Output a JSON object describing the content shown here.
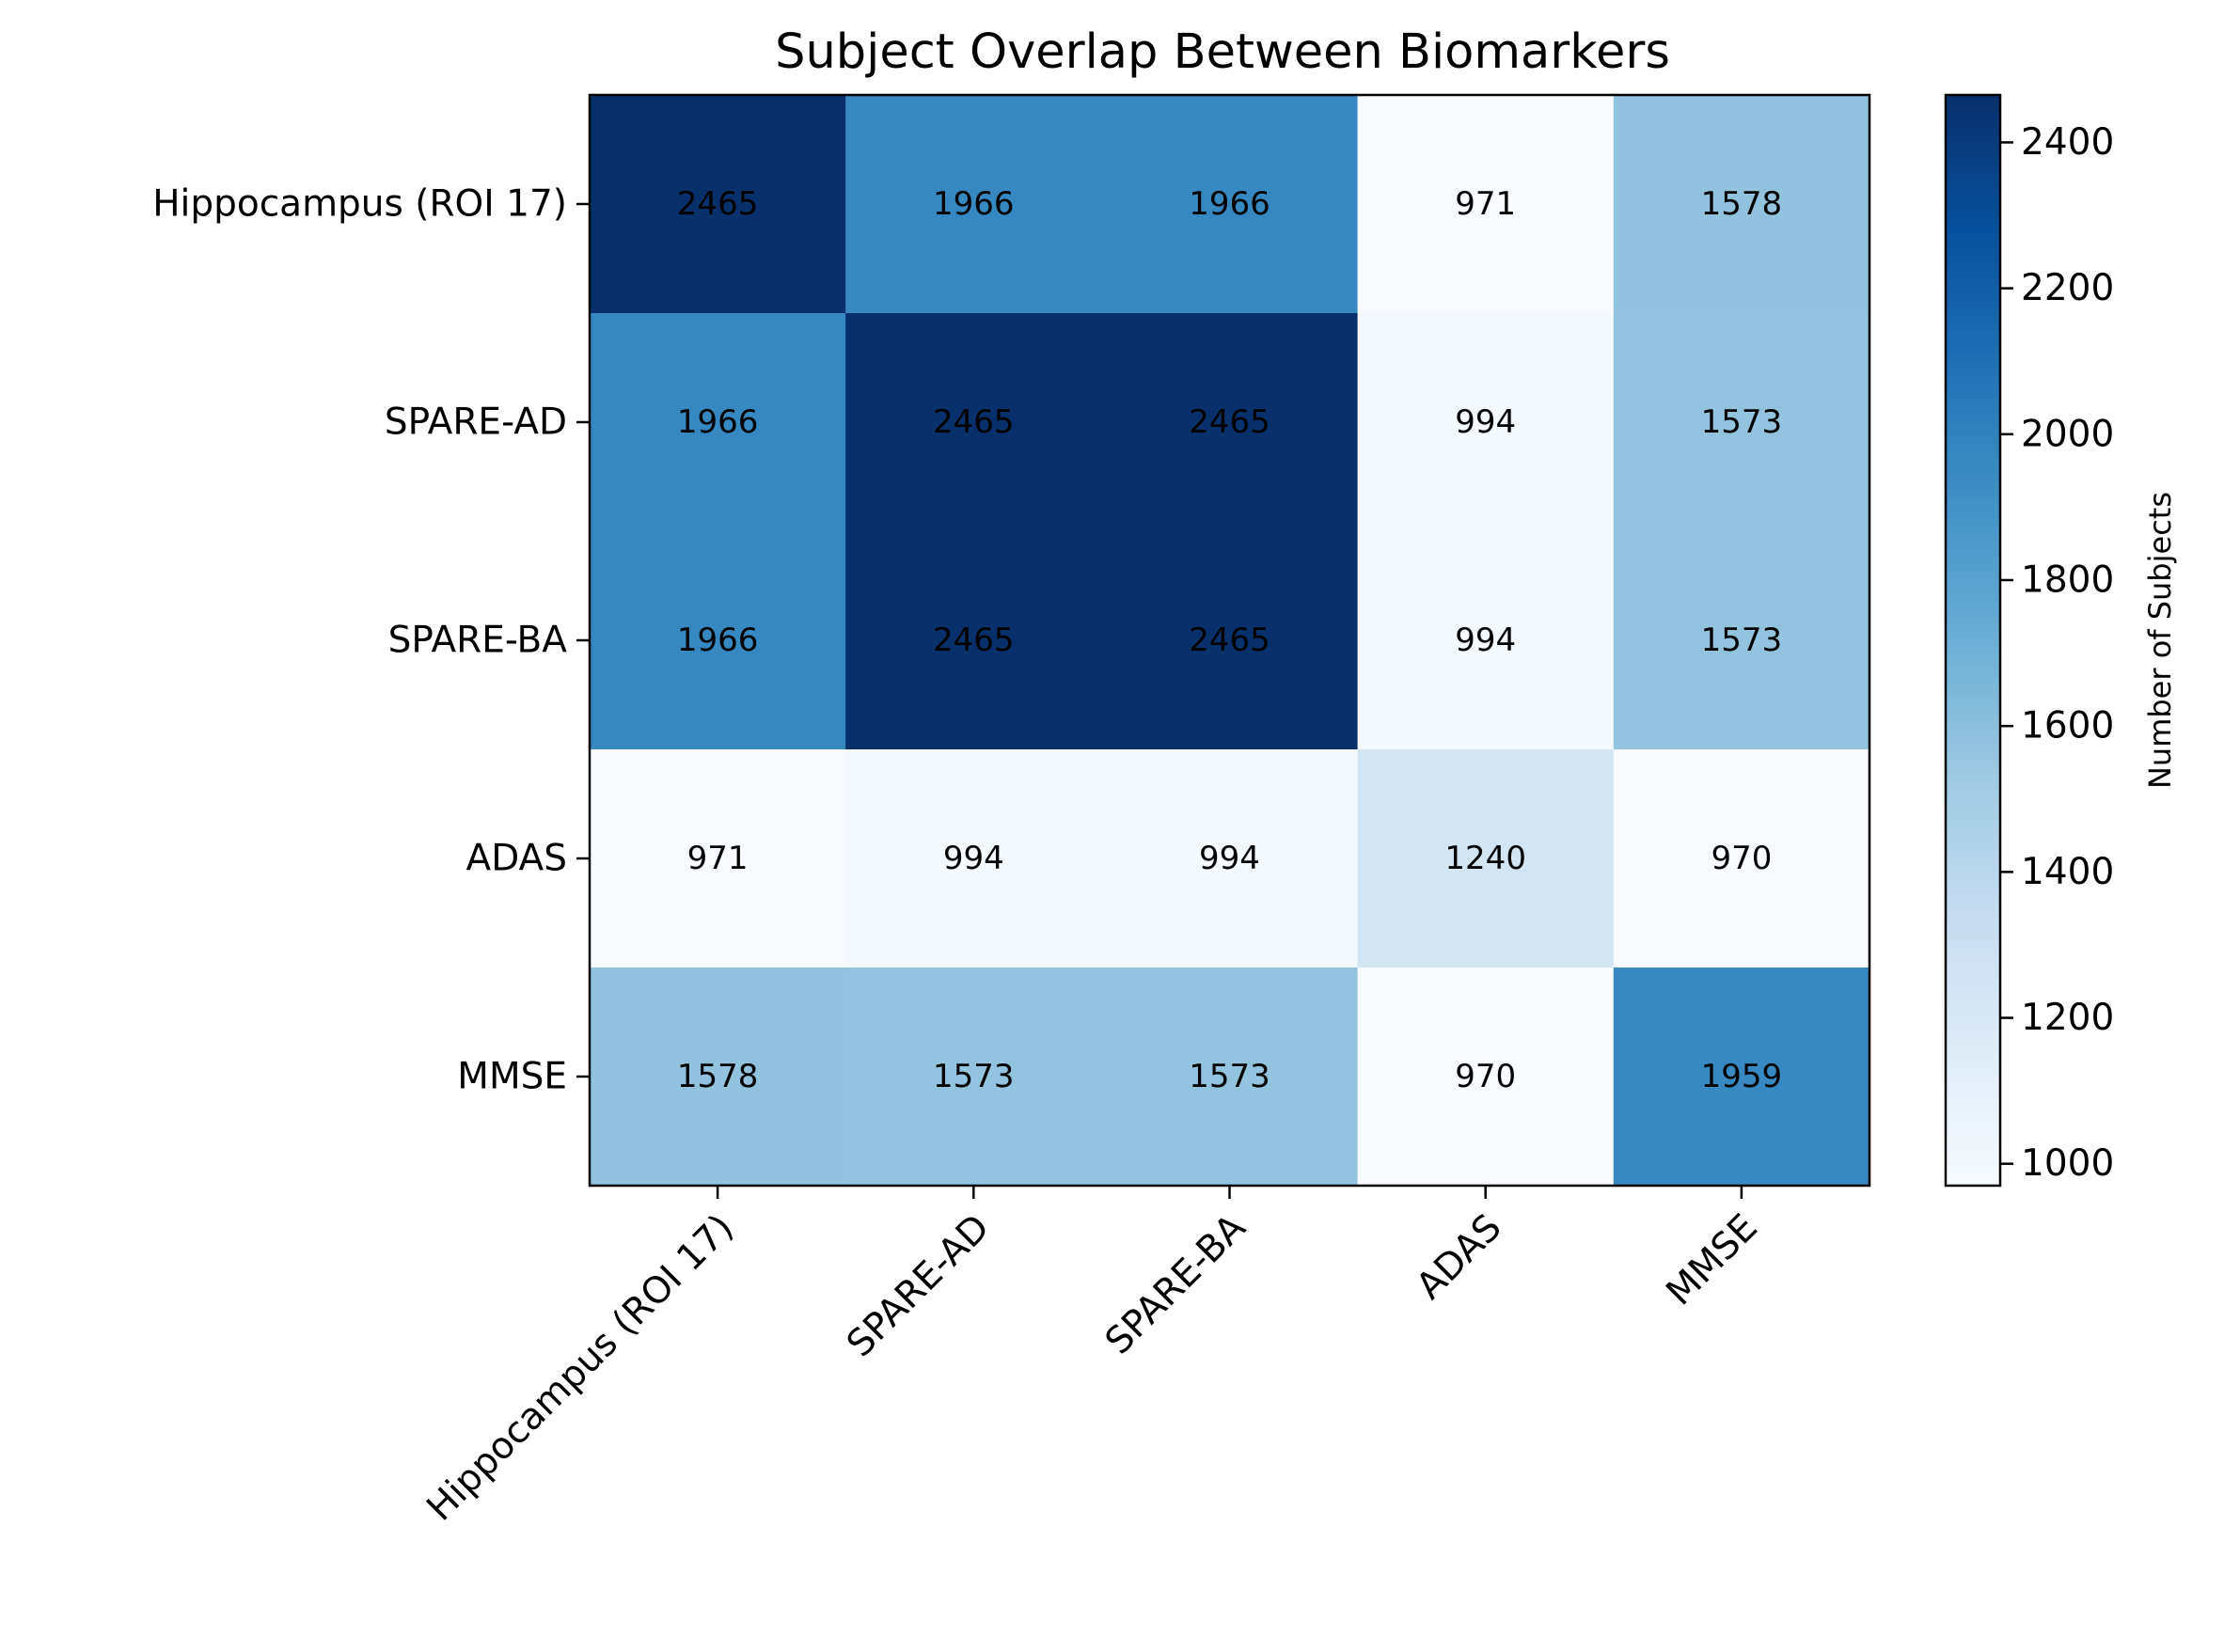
{
  "chart_data": {
    "type": "heatmap",
    "title": "Subject Overlap Between Biomarkers",
    "x_categories": [
      "Hippocampus (ROI 17)",
      "SPARE-AD",
      "SPARE-BA",
      "ADAS",
      "MMSE"
    ],
    "y_categories": [
      "Hippocampus (ROI 17)",
      "SPARE-AD",
      "SPARE-BA",
      "ADAS",
      "MMSE"
    ],
    "values": [
      [
        2465,
        1966,
        1966,
        971,
        1578
      ],
      [
        1966,
        2465,
        2465,
        994,
        1573
      ],
      [
        1966,
        2465,
        2465,
        994,
        1573
      ],
      [
        971,
        994,
        994,
        1240,
        970
      ],
      [
        1578,
        1573,
        1573,
        970,
        1959
      ]
    ],
    "colorbar": {
      "label": "Number of Subjects",
      "min": 970,
      "max": 2465,
      "ticks": [
        1000,
        1200,
        1400,
        1600,
        1800,
        2000,
        2200,
        2400
      ]
    },
    "colormap": "Blues",
    "colormap_stops": [
      "#f7fbff",
      "#deebf7",
      "#c6dbef",
      "#9ecae1",
      "#6baed6",
      "#4292c6",
      "#2171b5",
      "#08519c",
      "#08306b"
    ],
    "grid": false
  }
}
